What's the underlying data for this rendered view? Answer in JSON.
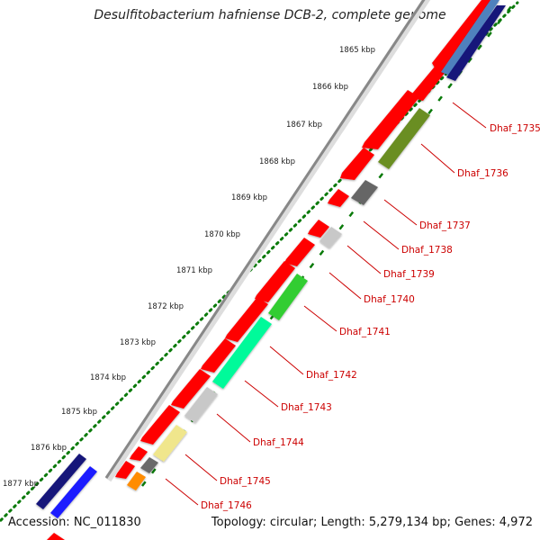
{
  "title": "Desulfitobacterium hafniense DCB-2, complete genome",
  "footer": {
    "accession": "Accession: NC_011830",
    "topology": "Topology: circular; Length: 5,279,134 bp; Genes: 4,972"
  },
  "scale": {
    "unit": "kbp",
    "ticks": [
      {
        "label": "1877 kbp",
        "value": 1877
      },
      {
        "label": "1876 kbp",
        "value": 1876
      },
      {
        "label": "1875 kbp",
        "value": 1875
      },
      {
        "label": "1874 kbp",
        "value": 1874
      },
      {
        "label": "1873 kbp",
        "value": 1873
      },
      {
        "label": "1872 kbp",
        "value": 1872
      },
      {
        "label": "1871 kbp",
        "value": 1871
      },
      {
        "label": "1870 kbp",
        "value": 1870
      },
      {
        "label": "1869 kbp",
        "value": 1869
      },
      {
        "label": "1868 kbp",
        "value": 1868
      },
      {
        "label": "1867 kbp",
        "value": 1867
      },
      {
        "label": "1866 kbp",
        "value": 1866
      },
      {
        "label": "1865 kbp",
        "value": 1865
      }
    ]
  },
  "genes": [
    {
      "label": "Dhaf_1735",
      "color": "#14147a"
    },
    {
      "label": "Dhaf_1736",
      "color": "#6b8e23"
    },
    {
      "label": "Dhaf_1737",
      "color": "#666666"
    },
    {
      "label": "Dhaf_1738",
      "color": "#ffffff"
    },
    {
      "label": "Dhaf_1739",
      "color": "#c8c8c8"
    },
    {
      "label": "Dhaf_1740",
      "color": "#ffffff"
    },
    {
      "label": "Dhaf_1741",
      "color": "#32cd32"
    },
    {
      "label": "Dhaf_1742",
      "color": "#00fa9a"
    },
    {
      "label": "Dhaf_1743",
      "color": "#c8c8c8"
    },
    {
      "label": "Dhaf_1744",
      "color": "#f0e68c"
    },
    {
      "label": "Dhaf_1745",
      "color": "#696969"
    },
    {
      "label": "Dhaf_1746",
      "color": "#ff8c00"
    }
  ],
  "colors": {
    "forward_strand": "#ff0000",
    "label_text": "#cc0000",
    "tick_marks": "#008000",
    "backbone": "#888888"
  }
}
